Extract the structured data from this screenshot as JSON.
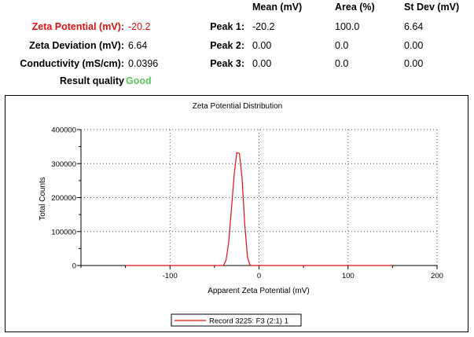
{
  "summary": {
    "zeta_potential_label": "Zeta Potential (mV):",
    "zeta_potential_value": "-20.2",
    "zeta_deviation_label": "Zeta Deviation (mV):",
    "zeta_deviation_value": "6.64",
    "conductivity_label": "Conductivity (mS/cm):",
    "conductivity_value": "0.0396",
    "quality_label": "Result quality",
    "quality_value": "Good"
  },
  "peaks": {
    "headers": {
      "mean": "Mean (mV)",
      "area": "Area (%)",
      "stdev": "St Dev (mV)"
    },
    "rows": [
      {
        "label": "Peak 1:",
        "mean": "-20.2",
        "area": "100.0",
        "stdev": "6.64"
      },
      {
        "label": "Peak 2:",
        "mean": "0.00",
        "area": "0.0",
        "stdev": "0.00"
      },
      {
        "label": "Peak 3:",
        "mean": "0.00",
        "area": "0.0",
        "stdev": "0.00"
      }
    ]
  },
  "colors": {
    "accent_red": "#e01010",
    "good_green": "#5cc85c",
    "series": "#e01010"
  },
  "chart_data": {
    "type": "line",
    "title": "Zeta Potential Distribution",
    "xlabel": "Apparent Zeta Potential (mV)",
    "ylabel": "Total Counts",
    "xlim": [
      -200,
      200
    ],
    "ylim": [
      0,
      400000
    ],
    "xticks": [
      -100,
      0,
      100,
      200
    ],
    "yticks": [
      0,
      100000,
      200000,
      300000,
      400000
    ],
    "grid": true,
    "legend_position": "bottom-center",
    "series": [
      {
        "name": "Record 3225: F3 (2:1) 1",
        "color": "#e01010",
        "x": [
          -150,
          -100,
          -50,
          -40,
          -37,
          -34,
          -31,
          -28,
          -25,
          -22,
          -19,
          -16,
          -13,
          -10,
          -7,
          -5,
          0,
          50,
          100,
          150
        ],
        "y": [
          0,
          0,
          0,
          0,
          15000,
          70000,
          165000,
          265000,
          332000,
          330000,
          255000,
          120000,
          25000,
          0,
          0,
          0,
          0,
          0,
          0,
          0
        ]
      }
    ]
  }
}
